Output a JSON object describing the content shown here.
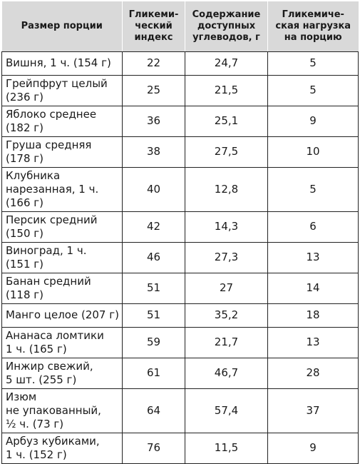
{
  "table": {
    "headers": [
      "Размер порции",
      "Гликеми-\nческий\nиндекс",
      "Содержание\nдоступных\nуглеводов, г",
      "Гликемиче-\nская нагрузка\nна порцию"
    ],
    "rows": [
      {
        "portion": "Вишня, 1 ч. (154 г)",
        "gi": "22",
        "carbs": "24,7",
        "load": "5",
        "h": "r1"
      },
      {
        "portion": "Грейпфрут целый\n(236 г)",
        "gi": "25",
        "carbs": "21,5",
        "load": "5",
        "h": "r2"
      },
      {
        "portion": "Яблоко среднее\n(182 г)",
        "gi": "36",
        "carbs": "25,1",
        "load": "9",
        "h": "r2"
      },
      {
        "portion": "Груша средняя\n(178 г)",
        "gi": "38",
        "carbs": "27,5",
        "load": "10",
        "h": "r2"
      },
      {
        "portion": "Клубника\nнарезанная, 1 ч.\n(166 г)",
        "gi": "40",
        "carbs": "12,8",
        "load": "5",
        "h": "r3"
      },
      {
        "portion": "Персик средний\n(150 г)",
        "gi": "42",
        "carbs": "14,3",
        "load": "6",
        "h": "r2"
      },
      {
        "portion": "Виноград, 1 ч.\n(151 г)",
        "gi": "46",
        "carbs": "27,3",
        "load": "13",
        "h": "r2"
      },
      {
        "portion": "Банан средний\n(118 г)",
        "gi": "51",
        "carbs": "27",
        "load": "14",
        "h": "r2"
      },
      {
        "portion": "Манго целое (207 г)",
        "gi": "51",
        "carbs": "35,2",
        "load": "18",
        "h": "r1"
      },
      {
        "portion": "Ананаса ломтики\n1 ч. (165 г)",
        "gi": "59",
        "carbs": "21,7",
        "load": "13",
        "h": "r2"
      },
      {
        "portion": "Инжир свежий,\n5 шт. (255 г)",
        "gi": "61",
        "carbs": "46,7",
        "load": "28",
        "h": "r2"
      },
      {
        "portion": "Изюм\nне упакованный,\n½ ч. (73 г)",
        "gi": "64",
        "carbs": "57,4",
        "load": "37",
        "h": "r3"
      },
      {
        "portion": "Арбуз кубиками,\n1 ч. (152 г)",
        "gi": "76",
        "carbs": "11,5",
        "load": "9",
        "h": "r2"
      }
    ]
  },
  "colors": {
    "header_bg": "#d9d9d9",
    "border": "#222222",
    "text": "#1a1a1a"
  }
}
